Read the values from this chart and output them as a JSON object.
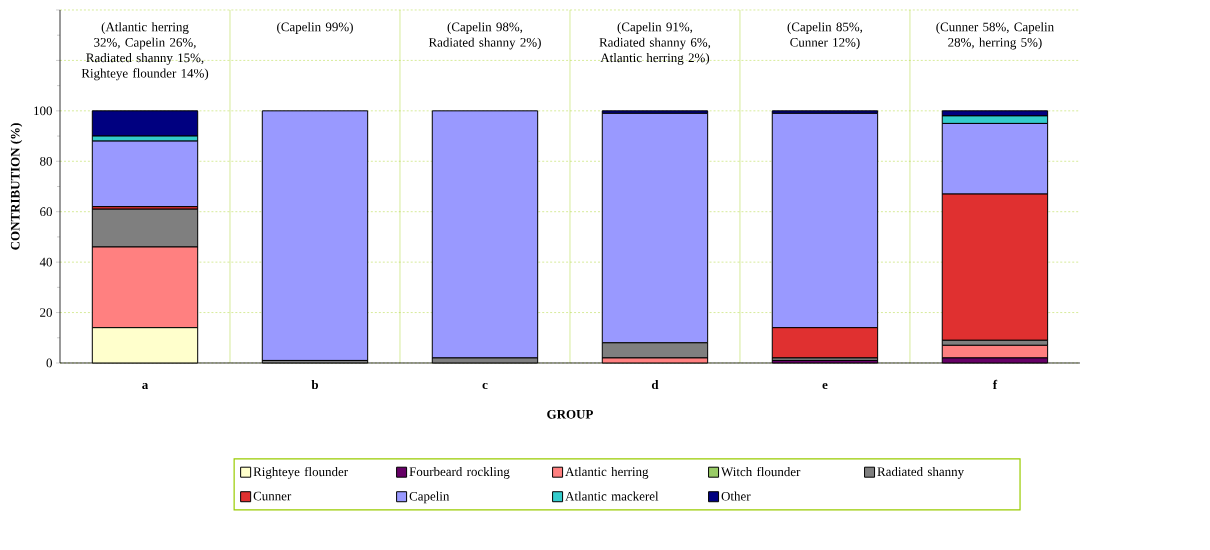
{
  "chart_data": {
    "type": "bar",
    "stacked": true,
    "xlabel": "GROUP",
    "ylabel": "CONTRIBUTION  (%)",
    "categories": [
      "a",
      "b",
      "c",
      "d",
      "e",
      "f"
    ],
    "series": [
      {
        "name": "Righteye flounder",
        "color": "#ffffcc",
        "values": [
          14,
          0,
          0,
          0,
          0,
          0
        ]
      },
      {
        "name": "Fourbeard rockling",
        "color": "#660066",
        "values": [
          0,
          0,
          0,
          0,
          1,
          2
        ]
      },
      {
        "name": "Atlantic herring",
        "color": "#ff8080",
        "values": [
          32,
          0,
          0,
          2,
          0,
          5
        ]
      },
      {
        "name": "Witch flounder",
        "color": "#99cc66",
        "values": [
          0,
          0,
          0,
          0,
          0,
          0
        ]
      },
      {
        "name": "Radiated shanny",
        "color": "#7f7f7f",
        "values": [
          15,
          1,
          2,
          6,
          1,
          2
        ]
      },
      {
        "name": "Cunner",
        "color": "#e03030",
        "values": [
          1,
          0,
          0,
          0,
          12,
          58
        ]
      },
      {
        "name": "Capelin",
        "color": "#9999ff",
        "values": [
          26,
          99,
          98,
          91,
          85,
          28
        ]
      },
      {
        "name": "Atlantic mackerel",
        "color": "#33cccc",
        "values": [
          2,
          0,
          0,
          0,
          0,
          3
        ]
      },
      {
        "name": "Other",
        "color": "#000080",
        "values": [
          10,
          0,
          0,
          1,
          1,
          2
        ]
      }
    ],
    "ylim": [
      0,
      140
    ],
    "yticks": [
      0,
      20,
      40,
      60,
      80,
      100,
      {
        "value": 120,
        "label": null
      },
      {
        "value": 140,
        "label": null
      }
    ],
    "grid": true,
    "legend": "bottom",
    "annotations": [
      "(Atlantic herring 32%, Capelin 26%, Radiated shanny 15%, Righteye flounder 14%)",
      "(Capelin 99%)",
      "(Capelin 98%, Radiated shanny 2%)",
      "(Capelin 91%, Radiated shanny 6%, Atlantic herring 2%)",
      "(Capelin 85%, Cunner 12%)",
      "(Cunner 58%, Capelin 28%, herring 5%)"
    ]
  }
}
